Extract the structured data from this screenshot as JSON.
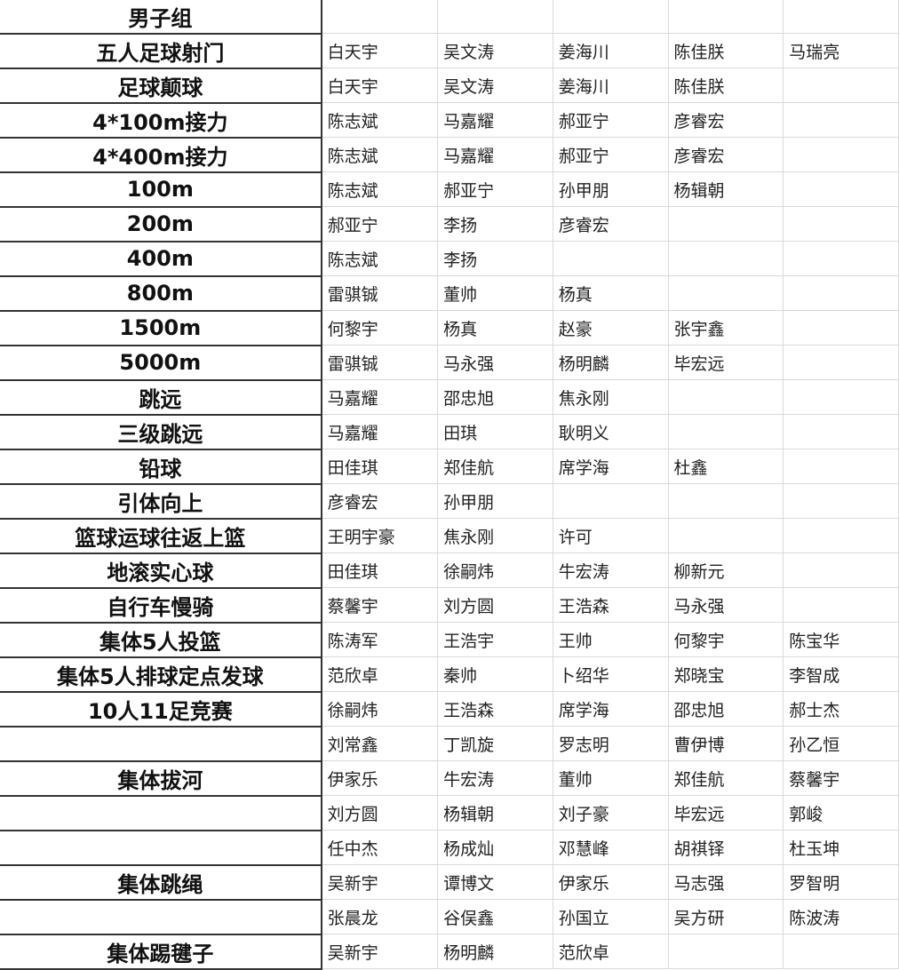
{
  "group_title": "男子组",
  "rows": [
    {
      "event": "五人足球射门",
      "names": [
        "白天宇",
        "吴文涛",
        "姜海川",
        "陈佳朕",
        "马瑞亮"
      ]
    },
    {
      "event": "足球颠球",
      "names": [
        "白天宇",
        "吴文涛",
        "姜海川",
        "陈佳朕",
        ""
      ]
    },
    {
      "event": "4*100m接力",
      "names": [
        "陈志斌",
        "马嘉耀",
        "郝亚宁",
        "彦睿宏",
        ""
      ]
    },
    {
      "event": "4*400m接力",
      "names": [
        "陈志斌",
        "马嘉耀",
        "郝亚宁",
        "彦睿宏",
        ""
      ]
    },
    {
      "event": "100m",
      "names": [
        "陈志斌",
        "郝亚宁",
        "孙甲朋",
        "杨辑朝",
        ""
      ]
    },
    {
      "event": "200m",
      "names": [
        "郝亚宁",
        "李扬",
        "彦睿宏",
        "",
        ""
      ]
    },
    {
      "event": "400m",
      "names": [
        "陈志斌",
        "李扬",
        "",
        "",
        ""
      ]
    },
    {
      "event": "800m",
      "names": [
        "雷骐铖",
        "董帅",
        "杨真",
        "",
        ""
      ]
    },
    {
      "event": "1500m",
      "names": [
        "何黎宇",
        "杨真",
        "赵豪",
        "张宇鑫",
        ""
      ]
    },
    {
      "event": "5000m",
      "names": [
        "雷骐铖",
        "马永强",
        "杨明麟",
        "毕宏远",
        ""
      ]
    },
    {
      "event": "跳远",
      "names": [
        "马嘉耀",
        "邵忠旭",
        "焦永刚",
        "",
        ""
      ]
    },
    {
      "event": "三级跳远",
      "names": [
        "马嘉耀",
        "田琪",
        "耿明义",
        "",
        ""
      ]
    },
    {
      "event": "铅球",
      "names": [
        "田佳琪",
        "郑佳航",
        "席学海",
        "杜鑫",
        ""
      ]
    },
    {
      "event": "引体向上",
      "names": [
        "彦睿宏",
        "孙甲朋",
        "",
        "",
        ""
      ]
    },
    {
      "event": "篮球运球往返上篮",
      "names": [
        "王明宇豪",
        "焦永刚",
        "许可",
        "",
        ""
      ]
    },
    {
      "event": "地滚实心球",
      "names": [
        "田佳琪",
        "徐嗣炜",
        "牛宏涛",
        "柳新元",
        ""
      ]
    },
    {
      "event": "自行车慢骑",
      "names": [
        "蔡馨宇",
        "刘方圆",
        "王浩森",
        "马永强",
        ""
      ]
    },
    {
      "event": "集体5人投篮",
      "names": [
        "陈涛军",
        "王浩宇",
        "王帅",
        "何黎宇",
        "陈宝华"
      ]
    },
    {
      "event": "集体5人排球定点发球",
      "names": [
        "范欣卓",
        "秦帅",
        "卜绍华",
        "郑晓宝",
        "李智成"
      ]
    },
    {
      "event": "10人11足竞赛",
      "names": [
        "徐嗣炜",
        "王浩森",
        "席学海",
        "邵忠旭",
        "郝士杰"
      ]
    },
    {
      "event": "",
      "names": [
        "刘常鑫",
        "丁凯旋",
        "罗志明",
        "曹伊博",
        "孙乙恒"
      ]
    },
    {
      "event": "集体拔河",
      "names": [
        "伊家乐",
        "牛宏涛",
        "董帅",
        "郑佳航",
        "蔡馨宇"
      ]
    },
    {
      "event": "",
      "names": [
        "刘方圆",
        "杨辑朝",
        "刘子豪",
        "毕宏远",
        "郭峻"
      ]
    },
    {
      "event": "",
      "names": [
        "任中杰",
        "杨成灿",
        "邓慧峰",
        "胡祺铎",
        "杜玉坤"
      ]
    },
    {
      "event": "集体跳绳",
      "names": [
        "吴新宇",
        "谭博文",
        "伊家乐",
        "马志强",
        "罗智明"
      ]
    },
    {
      "event": "",
      "names": [
        "张晨龙",
        "谷俣鑫",
        "孙国立",
        "吴方研",
        "陈波涛"
      ]
    },
    {
      "event": "集体踢毽子",
      "names": [
        "吴新宇",
        "杨明麟",
        "范欣卓",
        "",
        ""
      ]
    }
  ]
}
